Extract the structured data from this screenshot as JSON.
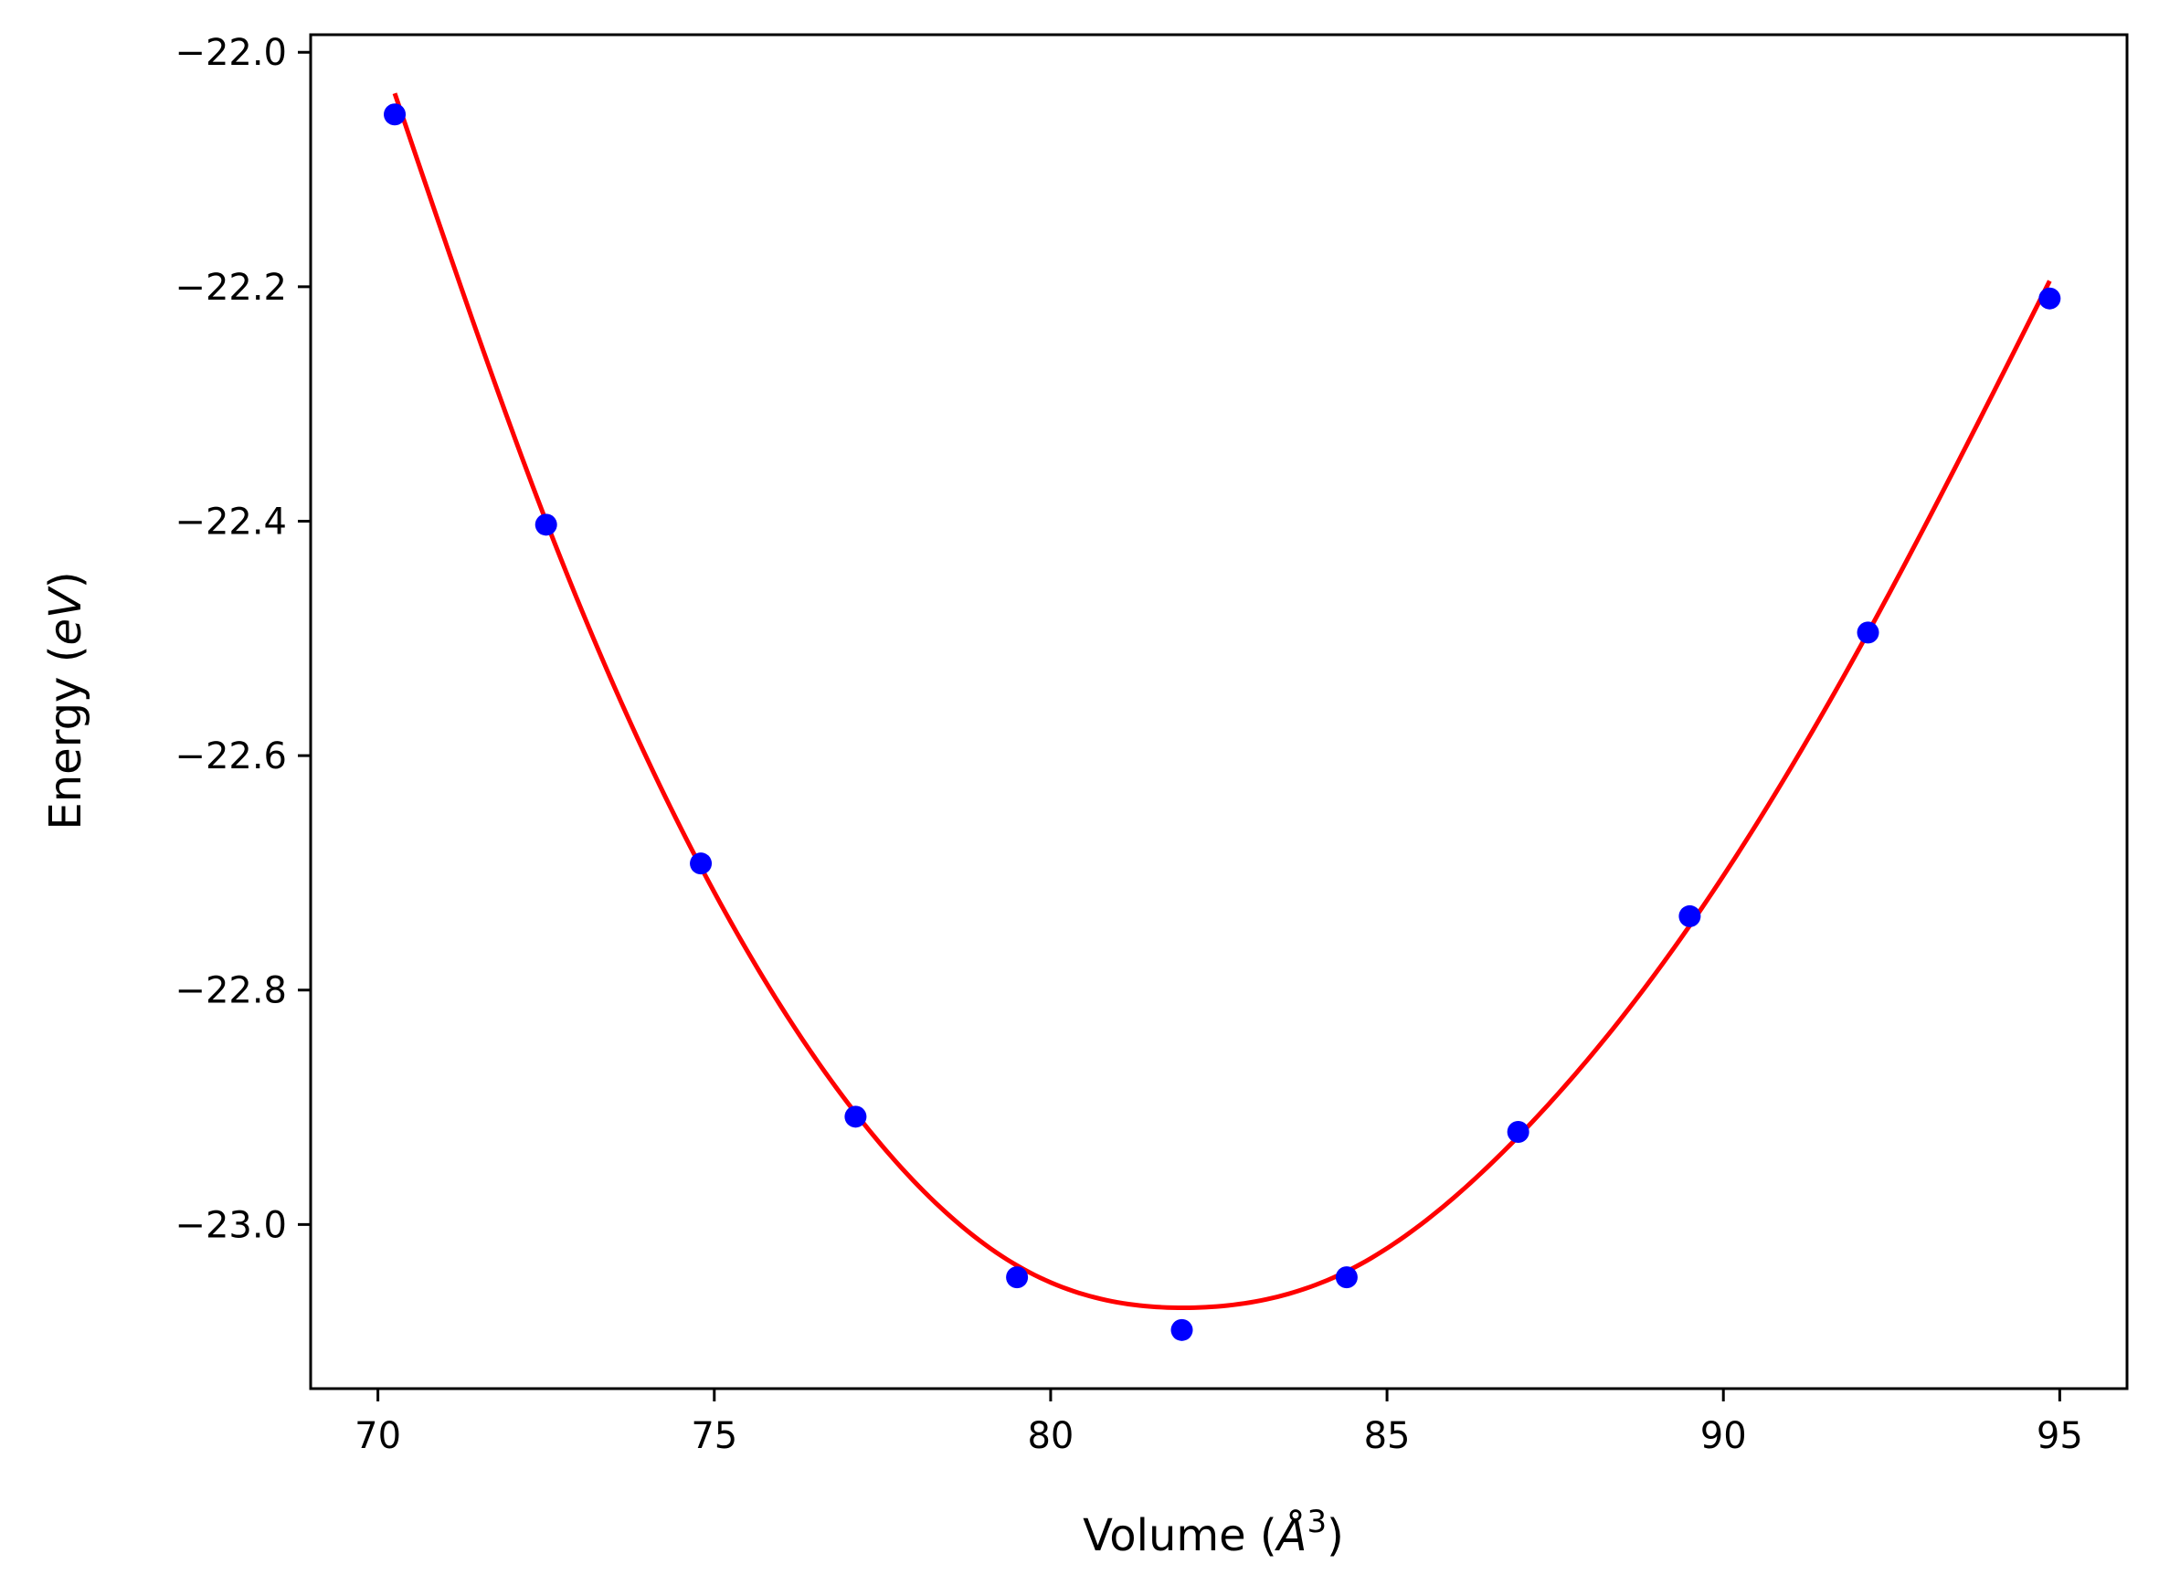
{
  "chart_data": {
    "type": "scatter",
    "title": "",
    "xlabel": "Volume",
    "xlabel_open": "(",
    "xlabel_unit": "Å",
    "xlabel_unit_sup": "3",
    "xlabel_close": ")",
    "ylabel": "Energy",
    "ylabel_open": "(",
    "ylabel_unit": "eV",
    "ylabel_close": ")",
    "xlim": [
      69.0,
      96.0
    ],
    "ylim": [
      -23.14,
      -21.985
    ],
    "xticks": [
      70,
      75,
      80,
      85,
      90,
      95
    ],
    "xtick_labels": [
      "70",
      "75",
      "80",
      "85",
      "90",
      "95"
    ],
    "yticks": [
      -22.0,
      -22.2,
      -22.4,
      -22.6,
      -22.8,
      -23.0
    ],
    "ytick_labels": [
      "−22.0",
      "−22.2",
      "−22.4",
      "−22.6",
      "−22.8",
      "−23.0"
    ],
    "grid": false,
    "legend": "none",
    "series": [
      {
        "kind": "scatter",
        "color": "#0000ff",
        "x": [
          70.25,
          72.5,
          74.8,
          77.1,
          79.5,
          81.95,
          84.4,
          86.95,
          89.5,
          92.15,
          94.85
        ],
        "y": [
          -22.053,
          -22.403,
          -22.692,
          -22.908,
          -23.045,
          -23.09,
          -23.045,
          -22.921,
          -22.737,
          -22.495,
          -22.21
        ]
      },
      {
        "kind": "fit-line",
        "color": "#ff0000",
        "x_range": [
          70.25,
          94.85
        ],
        "min_x": 82.05,
        "min_y": -23.071,
        "control_x": [
          70.25,
          72.5,
          74.8,
          77.1,
          79.5,
          82.05,
          84.4,
          86.95,
          89.5,
          92.15,
          94.85
        ],
        "control_y": [
          -22.035,
          -22.4,
          -22.695,
          -22.905,
          -23.035,
          -23.071,
          -23.04,
          -22.925,
          -22.745,
          -22.495,
          -22.195
        ]
      }
    ]
  }
}
